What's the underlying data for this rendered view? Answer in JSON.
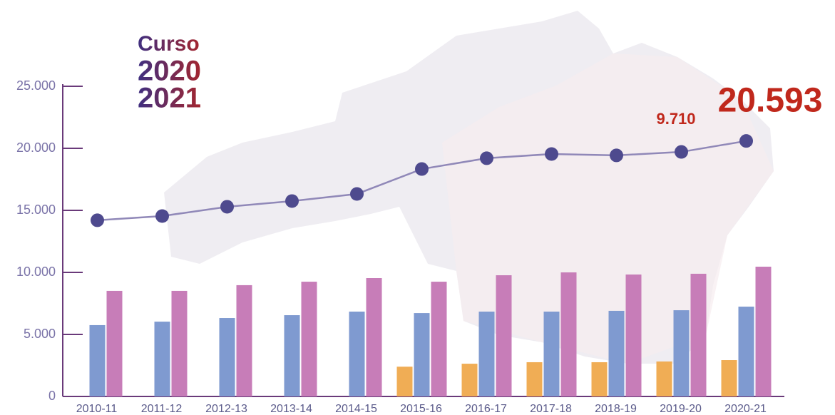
{
  "chart_data": {
    "type": "bar-line",
    "title": [
      "Curso",
      "2020",
      "2021"
    ],
    "categories": [
      "2010-11",
      "2011-12",
      "2012-13",
      "2013-14",
      "2014-15",
      "2015-16",
      "2016-17",
      "2017-18",
      "2018-19",
      "2019-20",
      "2020-21"
    ],
    "series": [
      {
        "type": "bar",
        "color": "#f0ad55",
        "values": [
          null,
          null,
          null,
          null,
          null,
          2400,
          2640,
          2760,
          2760,
          2820,
          2930
        ]
      },
      {
        "type": "bar",
        "color": "#7f9ad0",
        "values": [
          5750,
          6030,
          6320,
          6550,
          6840,
          6720,
          6840,
          6840,
          6900,
          6950,
          7240
        ]
      },
      {
        "type": "bar",
        "color": "#c77db8",
        "values": [
          8510,
          8510,
          8970,
          9250,
          9540,
          9250,
          9770,
          10000,
          9830,
          9890,
          10460
        ]
      },
      {
        "type": "line",
        "color": "#9088b8",
        "marker_color": "#4e4a8e",
        "values": [
          14200,
          14540,
          15290,
          15750,
          16320,
          18330,
          19200,
          19540,
          19430,
          19710,
          20593
        ],
        "value_labels": [
          null,
          null,
          null,
          null,
          null,
          null,
          null,
          null,
          null,
          null,
          "20.593"
        ]
      }
    ],
    "annotations": [
      "9.710"
    ],
    "ylim": [
      0,
      25000
    ],
    "yticks": [
      0,
      {
        "value": 5000,
        "label": "5.000"
      },
      {
        "value": 10000,
        "label": "10.000"
      },
      {
        "value": 15000,
        "label": "15.000"
      },
      {
        "value": 20000,
        "label": "20.000"
      },
      {
        "value": 25000,
        "label": "25.000"
      }
    ]
  }
}
